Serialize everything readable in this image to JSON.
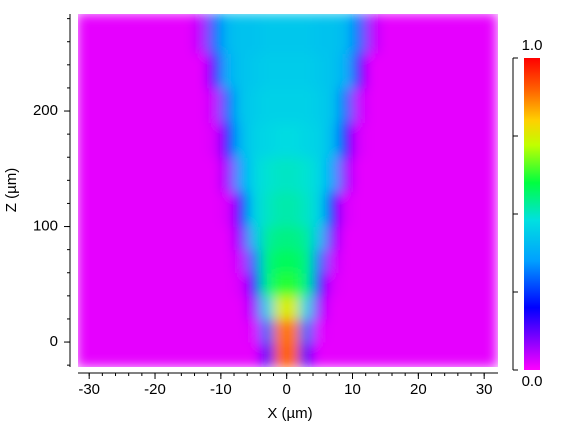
{
  "chart_data": {
    "type": "heatmap",
    "xlabel": "X (µm)",
    "ylabel": "Z (µm)",
    "xlim": [
      -31.7,
      32.1
    ],
    "ylim": [
      -21.6,
      284
    ],
    "xticks": [
      -30,
      -20,
      -10,
      0,
      10,
      20,
      30
    ],
    "yticks": [
      0,
      100,
      200
    ],
    "xminorticks": [
      -30,
      -28,
      -26,
      -24,
      -22,
      -20,
      -18,
      -16,
      -14,
      -12,
      -10,
      -8,
      -6,
      -4,
      -2,
      0,
      2,
      4,
      6,
      8,
      10,
      12,
      14,
      16,
      18,
      20,
      22,
      24,
      26,
      28,
      30
    ],
    "yminorticks": [
      -20,
      0,
      20,
      40,
      60,
      80,
      100,
      120,
      140,
      160,
      180,
      200,
      220,
      240,
      260,
      280
    ],
    "xbins": [
      -32,
      -14,
      -12,
      -10,
      -8,
      -6,
      -4,
      -2,
      0,
      2,
      4,
      6,
      8,
      10,
      12,
      14,
      32
    ],
    "ybins": [
      -22,
      0,
      20,
      40,
      60,
      80,
      100,
      130,
      160,
      190,
      220,
      250,
      285
    ],
    "z": [
      [
        0.02,
        0.02,
        0.02,
        0.02,
        0.02,
        0.02,
        0.15,
        0.9,
        0.9,
        0.15,
        0.02,
        0.02,
        0.02,
        0.02,
        0.02,
        0.02
      ],
      [
        0.02,
        0.02,
        0.02,
        0.02,
        0.02,
        0.03,
        0.3,
        0.88,
        0.88,
        0.3,
        0.03,
        0.02,
        0.02,
        0.02,
        0.02,
        0.02
      ],
      [
        0.02,
        0.02,
        0.02,
        0.02,
        0.02,
        0.08,
        0.45,
        0.75,
        0.75,
        0.45,
        0.08,
        0.02,
        0.02,
        0.02,
        0.02,
        0.02
      ],
      [
        0.02,
        0.02,
        0.02,
        0.02,
        0.03,
        0.2,
        0.55,
        0.62,
        0.62,
        0.55,
        0.2,
        0.03,
        0.02,
        0.02,
        0.02,
        0.02
      ],
      [
        0.02,
        0.02,
        0.02,
        0.02,
        0.05,
        0.3,
        0.55,
        0.58,
        0.58,
        0.55,
        0.3,
        0.05,
        0.02,
        0.02,
        0.02,
        0.02
      ],
      [
        0.02,
        0.02,
        0.02,
        0.02,
        0.1,
        0.4,
        0.53,
        0.55,
        0.55,
        0.53,
        0.4,
        0.1,
        0.02,
        0.02,
        0.02,
        0.02
      ],
      [
        0.02,
        0.02,
        0.02,
        0.03,
        0.2,
        0.45,
        0.5,
        0.52,
        0.52,
        0.5,
        0.45,
        0.2,
        0.03,
        0.02,
        0.02,
        0.02
      ],
      [
        0.02,
        0.02,
        0.02,
        0.08,
        0.35,
        0.46,
        0.49,
        0.5,
        0.5,
        0.49,
        0.46,
        0.35,
        0.08,
        0.02,
        0.02,
        0.02
      ],
      [
        0.02,
        0.02,
        0.03,
        0.2,
        0.4,
        0.45,
        0.46,
        0.47,
        0.47,
        0.46,
        0.45,
        0.4,
        0.2,
        0.03,
        0.02,
        0.02
      ],
      [
        0.02,
        0.02,
        0.05,
        0.3,
        0.42,
        0.44,
        0.45,
        0.45,
        0.45,
        0.45,
        0.44,
        0.42,
        0.3,
        0.05,
        0.02,
        0.02
      ],
      [
        0.02,
        0.02,
        0.15,
        0.38,
        0.42,
        0.43,
        0.44,
        0.44,
        0.44,
        0.44,
        0.43,
        0.42,
        0.38,
        0.15,
        0.02,
        0.02
      ],
      [
        0.02,
        0.06,
        0.3,
        0.4,
        0.42,
        0.42,
        0.43,
        0.43,
        0.43,
        0.43,
        0.42,
        0.42,
        0.4,
        0.3,
        0.06,
        0.02
      ]
    ],
    "colorscale": [
      [
        0,
        "#ff00ff"
      ],
      [
        0.1,
        "#8000ff"
      ],
      [
        0.2,
        "#0000ff"
      ],
      [
        0.35,
        "#00a0ff"
      ],
      [
        0.48,
        "#00e0e0"
      ],
      [
        0.6,
        "#00ff40"
      ],
      [
        0.72,
        "#c0ff00"
      ],
      [
        0.8,
        "#ffd000"
      ],
      [
        0.9,
        "#ff6000"
      ],
      [
        1,
        "#ff0000"
      ]
    ],
    "clim": [
      0,
      1
    ],
    "cticks": [
      {
        "value": 0,
        "label": "0.0"
      },
      {
        "value": 1,
        "label": "1.0"
      }
    ],
    "cminorticks": [
      0.25,
      0.5,
      0.75
    ]
  }
}
